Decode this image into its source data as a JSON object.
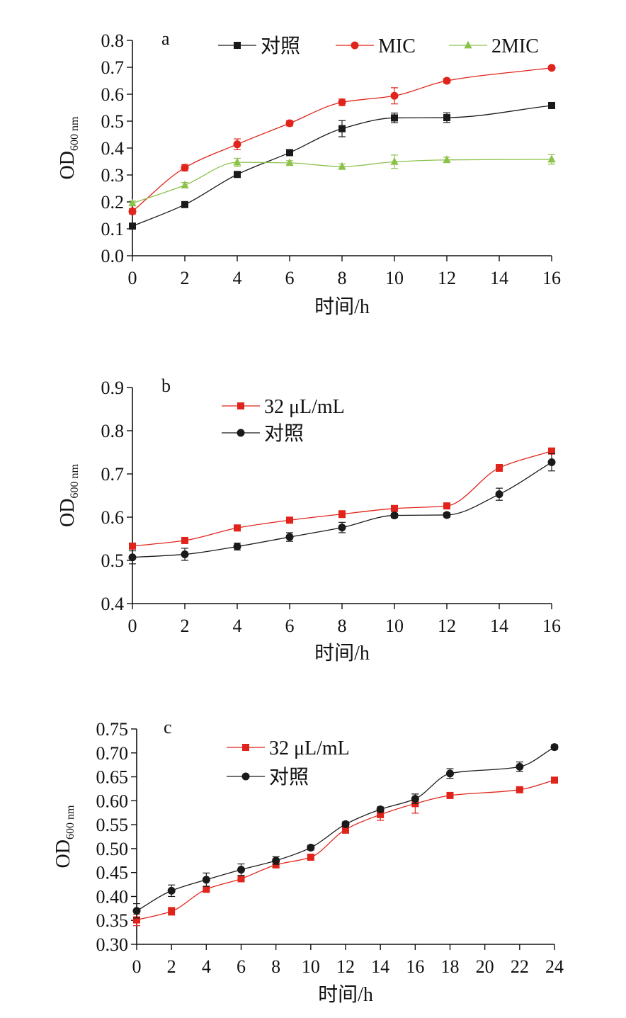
{
  "chart_data": [
    {
      "panel_label": "a",
      "type": "line",
      "xlabel": "时间/h",
      "ylabel": "OD",
      "ylabel_sub": "600 nm",
      "xlim": [
        0,
        16
      ],
      "ylim": [
        0.0,
        0.8
      ],
      "xticks": [
        "0",
        "2",
        "4",
        "6",
        "8",
        "10",
        "12",
        "14",
        "16"
      ],
      "yticks": [
        "0.0",
        "0.1",
        "0.2",
        "0.3",
        "0.4",
        "0.5",
        "0.6",
        "0.7",
        "0.8"
      ],
      "legend_position": "top",
      "series": [
        {
          "name": "对照",
          "color": "#1a1a1a",
          "marker": "square",
          "x": [
            0,
            2,
            4,
            6,
            8,
            10,
            12,
            16
          ],
          "y": [
            0.11,
            0.19,
            0.302,
            0.383,
            0.472,
            0.512,
            0.513,
            0.558
          ],
          "err": [
            0.01,
            0.008,
            0.01,
            0.008,
            0.03,
            0.018,
            0.018,
            0.008
          ]
        },
        {
          "name": "MIC",
          "color": "#e0241b",
          "marker": "circle",
          "x": [
            0,
            2,
            4,
            6,
            8,
            10,
            12,
            16
          ],
          "y": [
            0.165,
            0.327,
            0.414,
            0.492,
            0.57,
            0.594,
            0.65,
            0.698
          ],
          "err": [
            0.01,
            0.012,
            0.02,
            0.01,
            0.012,
            0.03,
            0.008,
            0.006
          ]
        },
        {
          "name": "2MIC",
          "color": "#8cc14a",
          "marker": "triangle",
          "x": [
            0,
            2,
            4,
            6,
            8,
            10,
            12,
            16
          ],
          "y": [
            0.195,
            0.262,
            0.347,
            0.345,
            0.331,
            0.349,
            0.356,
            0.358
          ],
          "err": [
            0.008,
            0.01,
            0.015,
            0.008,
            0.01,
            0.025,
            0.01,
            0.018
          ]
        }
      ]
    },
    {
      "panel_label": "b",
      "type": "line",
      "xlabel": "时间/h",
      "ylabel": "OD",
      "ylabel_sub": "600 nm",
      "xlim": [
        0,
        16
      ],
      "ylim": [
        0.4,
        0.9
      ],
      "xticks": [
        "0",
        "2",
        "4",
        "6",
        "8",
        "10",
        "12",
        "14",
        "16"
      ],
      "yticks": [
        "0.4",
        "0.5",
        "0.6",
        "0.7",
        "0.8",
        "0.9"
      ],
      "legend_position": "top-left",
      "series": [
        {
          "name": "32 μL/mL",
          "color": "#e0241b",
          "marker": "square",
          "x": [
            0,
            2,
            4,
            6,
            8,
            10,
            12,
            14,
            16
          ],
          "y": [
            0.533,
            0.546,
            0.575,
            0.593,
            0.607,
            0.62,
            0.626,
            0.714,
            0.753
          ],
          "err": [
            0.005,
            0.006,
            0.006,
            0.006,
            0.008,
            0.006,
            0.006,
            0.008,
            0.006
          ]
        },
        {
          "name": "对照",
          "color": "#1a1a1a",
          "marker": "circle",
          "x": [
            0,
            2,
            4,
            6,
            8,
            10,
            12,
            14,
            16
          ],
          "y": [
            0.507,
            0.514,
            0.532,
            0.554,
            0.576,
            0.604,
            0.605,
            0.653,
            0.727
          ],
          "err": [
            0.015,
            0.014,
            0.008,
            0.01,
            0.012,
            0.005,
            0.005,
            0.014,
            0.02
          ]
        }
      ]
    },
    {
      "panel_label": "c",
      "type": "line",
      "xlabel": "时间/h",
      "ylabel": "OD",
      "ylabel_sub": "600 nm",
      "xlim": [
        0,
        24
      ],
      "ylim": [
        0.3,
        0.75
      ],
      "xticks": [
        "0",
        "2",
        "4",
        "6",
        "8",
        "10",
        "12",
        "14",
        "16",
        "18",
        "20",
        "22",
        "24"
      ],
      "yticks": [
        "0.30",
        "0.35",
        "0.40",
        "0.45",
        "0.50",
        "0.55",
        "0.60",
        "0.65",
        "0.70",
        "0.75"
      ],
      "legend_position": "top-left",
      "series": [
        {
          "name": "32 μL/mL",
          "color": "#e0241b",
          "marker": "square",
          "x": [
            0,
            2,
            4,
            6,
            8,
            10,
            12,
            14,
            16,
            18,
            22,
            24
          ],
          "y": [
            0.351,
            0.369,
            0.415,
            0.437,
            0.466,
            0.482,
            0.54,
            0.571,
            0.594,
            0.611,
            0.623,
            0.643
          ],
          "err": [
            0.012,
            0.008,
            0.006,
            0.006,
            0.006,
            0.005,
            0.008,
            0.012,
            0.02,
            0.005,
            0.005,
            0.005
          ]
        },
        {
          "name": "对照",
          "color": "#1a1a1a",
          "marker": "circle",
          "x": [
            0,
            2,
            4,
            6,
            8,
            10,
            12,
            14,
            16,
            18,
            22,
            24
          ],
          "y": [
            0.37,
            0.412,
            0.435,
            0.456,
            0.475,
            0.502,
            0.551,
            0.582,
            0.604,
            0.657,
            0.671,
            0.712
          ],
          "err": [
            0.015,
            0.012,
            0.014,
            0.012,
            0.008,
            0.005,
            0.005,
            0.005,
            0.01,
            0.01,
            0.01,
            0.005
          ]
        }
      ]
    }
  ]
}
